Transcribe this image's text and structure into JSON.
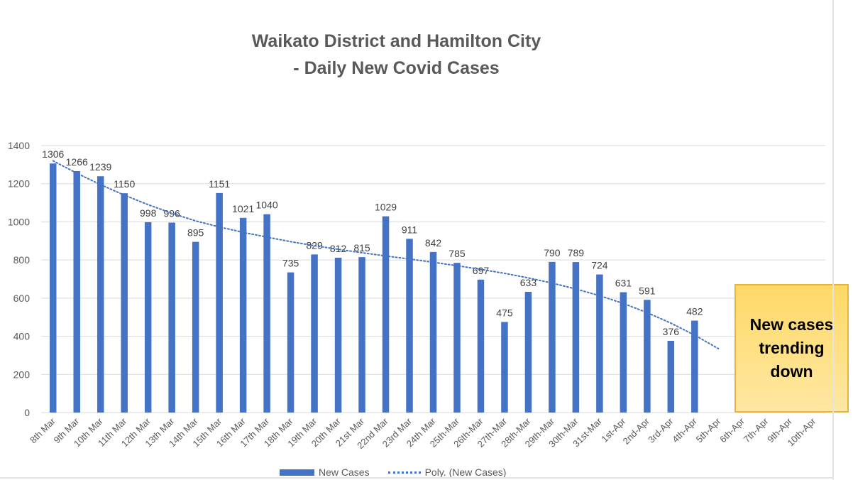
{
  "chart_data": {
    "type": "bar",
    "title": "Waikato District and Hamilton City",
    "subtitle": "- Daily New Covid Cases",
    "categories": [
      "8th Mar",
      "9th Mar",
      "10th Mar",
      "11th Mar",
      "12th Mar",
      "13th Mar",
      "14th Mar",
      "15th Mar",
      "16th Mar",
      "17th Mar",
      "18th Mar",
      "19th Mar",
      "20th Mar",
      "21st Mar",
      "22nd Mar",
      "23rd Mar",
      "24th Mar",
      "25th-Mar",
      "26th-Mar",
      "27th-Mar",
      "28th-Mar",
      "29th-Mar",
      "30th-Mar",
      "31st-Mar",
      "1st-Apr",
      "2nd-Apr",
      "3rd-Apr",
      "4th-Apr",
      "5th-Apr",
      "6th-Apr",
      "7th-Apr",
      "9th-Apr",
      "10th-Apr"
    ],
    "series": [
      {
        "name": "New Cases",
        "values": [
          1306,
          1266,
          1239,
          1150,
          998,
          996,
          895,
          1151,
          1021,
          1040,
          735,
          829,
          812,
          815,
          1029,
          911,
          842,
          785,
          697,
          475,
          633,
          790,
          789,
          724,
          631,
          591,
          376,
          482,
          null,
          null,
          null,
          null,
          null
        ]
      }
    ],
    "trendline": {
      "name": "Poly. (New Cases)",
      "style": "dotted",
      "values": [
        1320,
        1255,
        1195,
        1140,
        1090,
        1045,
        1005,
        973,
        945,
        920,
        896,
        875,
        856,
        838,
        821,
        805,
        788,
        770,
        751,
        730,
        706,
        679,
        648,
        613,
        572,
        524,
        469,
        406,
        335
      ]
    },
    "ylim": [
      0,
      1400
    ],
    "yticks": [
      0,
      200,
      400,
      600,
      800,
      1000,
      1200,
      1400
    ],
    "grid": true,
    "legend_position": "bottom",
    "colors": {
      "bar": "#4472c4",
      "trend": "#4472c4",
      "grid": "#d9d9d9",
      "text": "#595959"
    }
  },
  "annotation": {
    "text": "New cases trending down"
  },
  "legend": {
    "bar_label": "New Cases",
    "trend_label": "Poly. (New Cases)"
  }
}
